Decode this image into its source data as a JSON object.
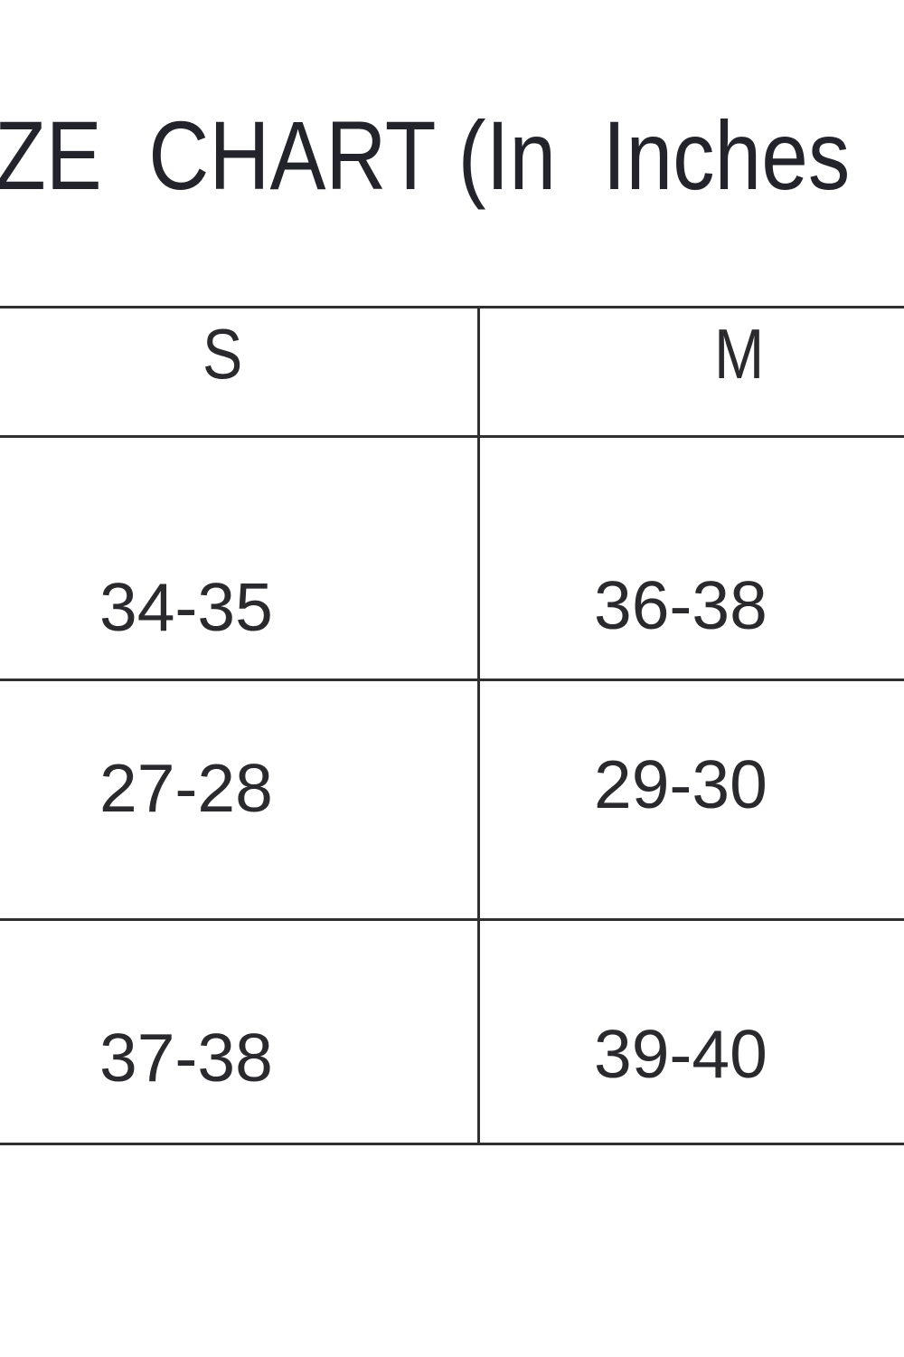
{
  "title": "ZE  CHART (In  Inches",
  "table": {
    "columns": [
      "S",
      "M"
    ],
    "rows": [
      [
        "34-35",
        "36-38"
      ],
      [
        "27-28",
        "29-30"
      ],
      [
        "37-38",
        "39-40"
      ]
    ]
  },
  "colors": {
    "text": "#2a2a2e",
    "lines": "#303030",
    "background": "#ffffff"
  }
}
